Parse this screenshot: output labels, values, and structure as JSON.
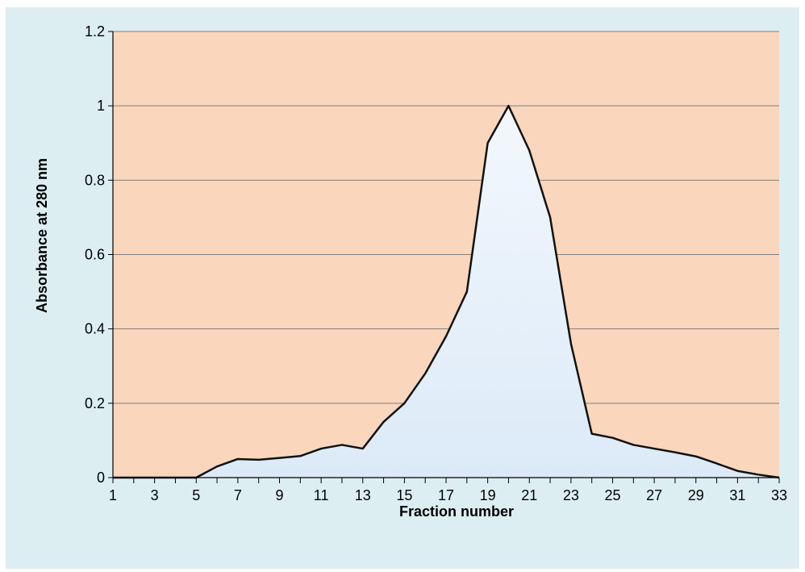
{
  "colors": {
    "outer_background": "#DDEEF3",
    "plot_background": "#FAD6BC",
    "area_fill": "#EAF3FB",
    "line": "#111111",
    "gridline": "#7F7F7F",
    "axis": "#000000"
  },
  "chart_data": {
    "type": "area",
    "title": "",
    "xlabel": "Fraction number",
    "ylabel": "Absorbance at  280 nm",
    "xlim": [
      1,
      33
    ],
    "ylim": [
      0,
      1.2
    ],
    "grid": true,
    "legend": "none",
    "x_ticks": [
      "1",
      "3",
      "5",
      "7",
      "9",
      "11",
      "13",
      "15",
      "17",
      "19",
      "21",
      "23",
      "25",
      "27",
      "29",
      "31",
      "33"
    ],
    "y_ticks": [
      "0",
      "0.2",
      "0.4",
      "0.6",
      "0.8",
      "1",
      "1.2"
    ],
    "x": [
      1,
      2,
      3,
      4,
      5,
      6,
      7,
      8,
      9,
      10,
      11,
      12,
      13,
      14,
      15,
      16,
      17,
      18,
      19,
      20,
      21,
      22,
      23,
      24,
      25,
      26,
      27,
      28,
      29,
      30,
      31,
      32,
      33
    ],
    "values": [
      0,
      0,
      0,
      0,
      0,
      0.03,
      0.05,
      0.048,
      0.053,
      0.058,
      0.078,
      0.088,
      0.078,
      0.15,
      0.2,
      0.28,
      0.38,
      0.5,
      0.9,
      1.0,
      0.88,
      0.7,
      0.36,
      0.118,
      0.107,
      0.088,
      0.078,
      0.068,
      0.057,
      0.038,
      0.018,
      0.008,
      0
    ]
  }
}
